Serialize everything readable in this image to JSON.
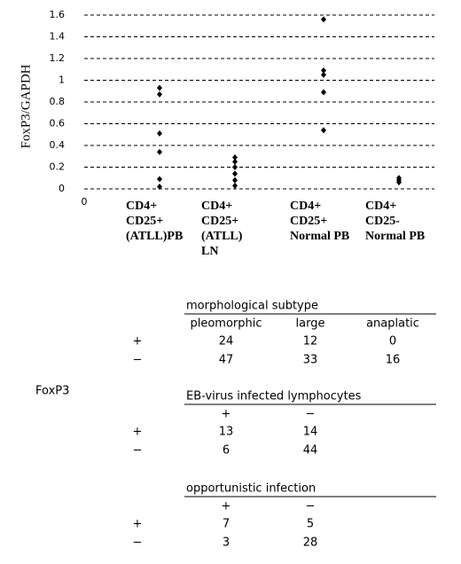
{
  "chart_data": {
    "type": "scatter",
    "y_label": "FoxP3/GAPDH",
    "x_origin_label": "0",
    "categories": [
      [
        "CD4+",
        "CD25+",
        "(ATLL)PB"
      ],
      [
        "CD4+",
        "CD25+",
        "(ATLL)",
        "LN"
      ],
      [
        "CD4+",
        "CD25+",
        "Normal PB"
      ],
      [
        "CD4+",
        "CD25-",
        "Normal PB"
      ]
    ],
    "values": [
      [
        0.93,
        0.87,
        0.51,
        0.34,
        0.09,
        0.02
      ],
      [
        0.29,
        0.25,
        0.2,
        0.14,
        0.08,
        0.03
      ],
      [
        1.56,
        1.09,
        1.05,
        0.89,
        0.54
      ],
      [
        0.1,
        0.08,
        0.06
      ]
    ],
    "color": "#000000",
    "ylim": [
      0,
      1.6
    ],
    "yticks": [
      0,
      0.2,
      0.4,
      0.6,
      0.8,
      1,
      1.2,
      1.4,
      1.6
    ],
    "grid": true
  },
  "row_label": "FoxP3",
  "tables": [
    {
      "title": "morphological subtype",
      "columns": [
        "pleomorphic",
        "large",
        "anaplatic"
      ],
      "rows": [
        [
          "+",
          "24",
          "12",
          "0"
        ],
        [
          "−",
          "47",
          "33",
          "16"
        ]
      ]
    },
    {
      "title": "EB-virus infected lymphocytes",
      "columns": [
        "+",
        "−"
      ],
      "rows": [
        [
          "+",
          "13",
          "14"
        ],
        [
          "−",
          "6",
          "44"
        ]
      ]
    },
    {
      "title": "opportunistic infection",
      "columns": [
        "+",
        "−"
      ],
      "rows": [
        [
          "+",
          "7",
          "5"
        ],
        [
          "−",
          "3",
          "28"
        ]
      ]
    }
  ]
}
